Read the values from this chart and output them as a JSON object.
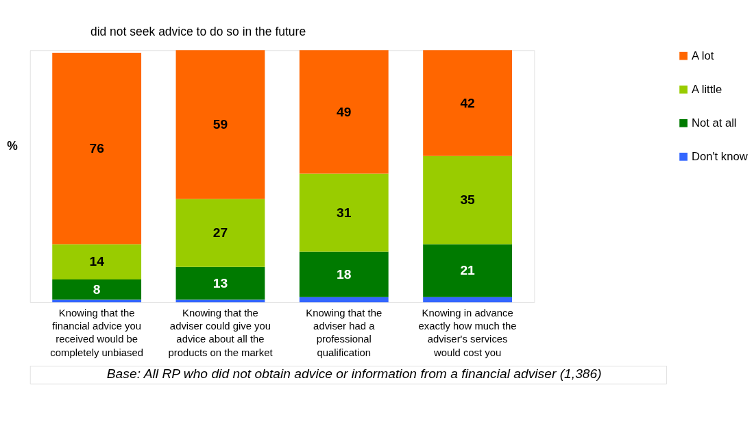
{
  "chart_data": {
    "type": "bar",
    "stacked": true,
    "title": "did not seek advice to do so in the future",
    "ylabel": "%",
    "categories": [
      "Knowing that the financial advice you received would be completely unbiased",
      "Knowing that the adviser could give you advice about all the products on the market",
      "Knowing that the adviser had a professional qualification",
      "Knowing in advance exactly how much the adviser's services would cost you"
    ],
    "series": [
      {
        "name": "Don't know",
        "color": "#3366ff",
        "values": [
          1,
          1,
          2,
          2
        ],
        "value_labels": [
          null,
          null,
          null,
          null
        ]
      },
      {
        "name": "Not at all",
        "color": "#007a00",
        "values": [
          8,
          13,
          18,
          21
        ],
        "value_labels": [
          "8",
          "13",
          "18",
          "21"
        ]
      },
      {
        "name": "A little",
        "color": "#99cc00",
        "values": [
          14,
          27,
          31,
          35
        ],
        "value_labels": [
          "14",
          "27",
          "31",
          "35"
        ]
      },
      {
        "name": "A lot",
        "color": "#ff6600",
        "values": [
          76,
          59,
          49,
          42
        ],
        "value_labels": [
          "76",
          "59",
          "49",
          "42"
        ]
      }
    ],
    "legend": "right",
    "grid": false,
    "annotations": [
      "Base: All RP who did not obtain advice or information from a financial adviser (1,386)"
    ]
  }
}
